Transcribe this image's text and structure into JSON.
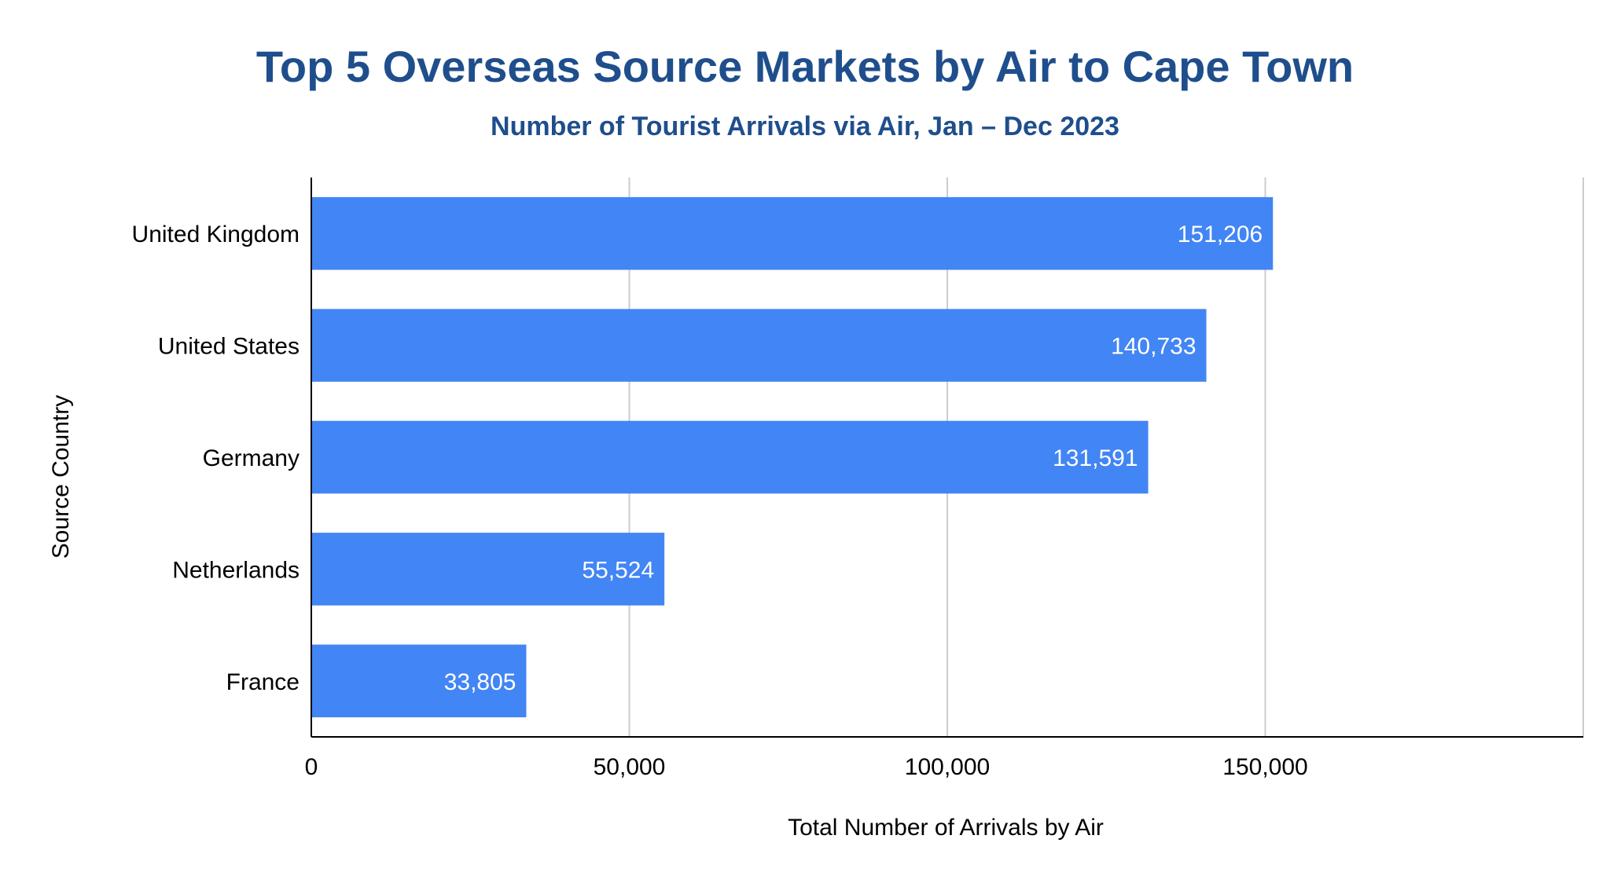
{
  "chart_data": {
    "type": "bar",
    "orientation": "horizontal",
    "title": "Top 5 Overseas Source Markets by Air to Cape Town",
    "subtitle": "Number of Tourist Arrivals via Air, Jan – Dec 2023",
    "xlabel": "Total Number of Arrivals by Air",
    "ylabel": "Source Country",
    "categories": [
      "United Kingdom",
      "United States",
      "Germany",
      "Netherlands",
      "France"
    ],
    "values": [
      151206,
      140733,
      131591,
      55524,
      33805
    ],
    "value_labels": [
      "151,206",
      "140,733",
      "131,591",
      "55,524",
      "33,805"
    ],
    "xlim": [
      0,
      200000
    ],
    "xticks": [
      0,
      50000,
      100000,
      150000
    ],
    "xtick_labels": [
      "0",
      "50,000",
      "100,000",
      "150,000"
    ],
    "grid": "vertical",
    "legend": "none",
    "colors": {
      "bar": "#4285f4",
      "title": "#1f4e8c",
      "grid": "#cccccc",
      "axis": "#000000"
    }
  }
}
